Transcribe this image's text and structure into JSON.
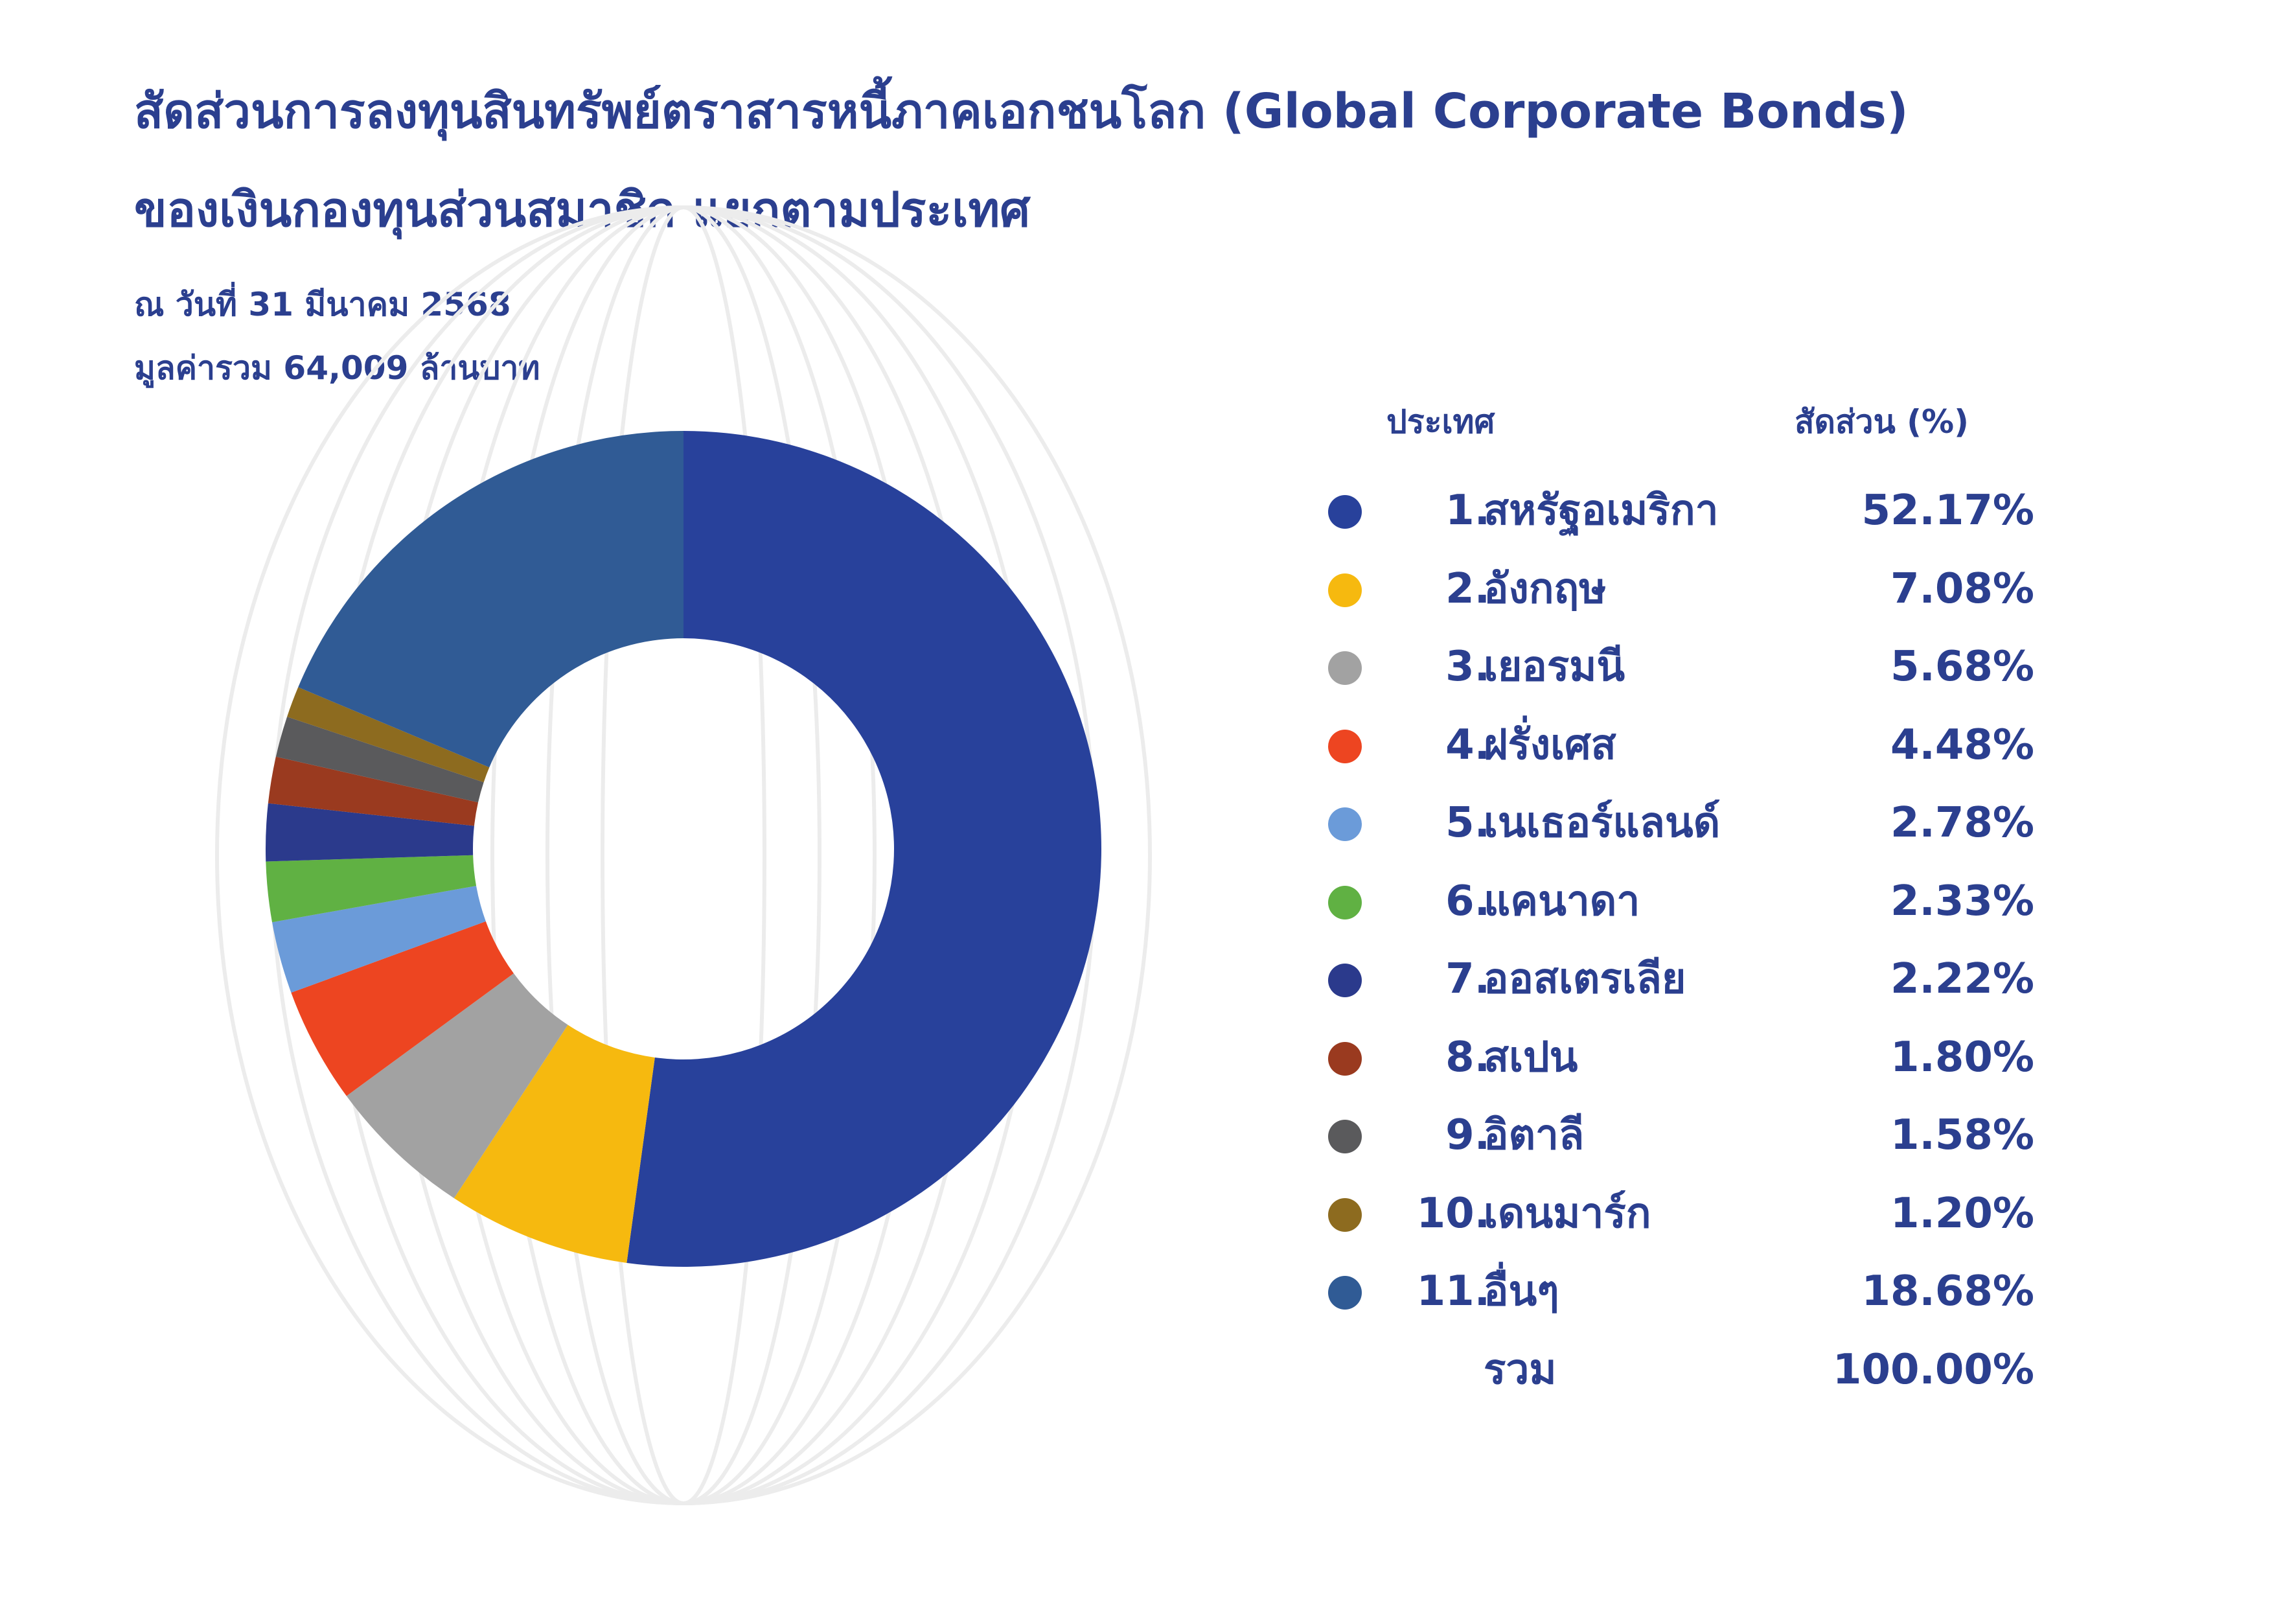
{
  "title_line_1": "สัดส่วนการลงทุนสินทรัพย์ตราสารหนี้ภาคเอกชนโลก (Global Corporate Bonds)",
  "title_line_2": "ของเงินกองทุนส่วนสมาชิก แยกตามประเทศ",
  "date_line": "ณ วันที่ 31 มีนาคม 2568",
  "total_line": "มูลค่ารวม  64,009 ล้านบาท",
  "legend_header": {
    "country": "ประเทศ",
    "share": "สัดส่วน (%)"
  },
  "total_row": {
    "label": "รวม",
    "value": "100.00%"
  },
  "chart_data": {
    "type": "pie",
    "donut": true,
    "categories": [
      "สหรัฐอเมริกา",
      "อังกฤษ",
      "เยอรมนี",
      "ฝรั่งเศส",
      "เนเธอร์แลนด์",
      "แคนาดา",
      "ออสเตรเลีย",
      "สเปน",
      "อิตาลี",
      "เดนมาร์ก",
      "อื่นๆ"
    ],
    "numbers": [
      "1.",
      "2.",
      "3.",
      "4.",
      "5.",
      "6.",
      "7.",
      "8.",
      "9.",
      "10.",
      "11."
    ],
    "values": [
      52.17,
      7.08,
      5.68,
      4.48,
      2.78,
      2.33,
      2.22,
      1.8,
      1.58,
      1.2,
      18.68
    ],
    "labels": [
      "52.17%",
      "7.08%",
      "5.68%",
      "4.48%",
      "2.78%",
      "2.33%",
      "2.22%",
      "1.80%",
      "1.58%",
      "1.20%",
      "18.68%"
    ],
    "colors": [
      "#28419b",
      "#f6b90f",
      "#a2a2a2",
      "#ed4521",
      "#6b9bd9",
      "#60b143",
      "#2b3a8c",
      "#9a3a1f",
      "#5a5a5c",
      "#8d6b1f",
      "#305b95"
    ],
    "legend_position": "right"
  }
}
